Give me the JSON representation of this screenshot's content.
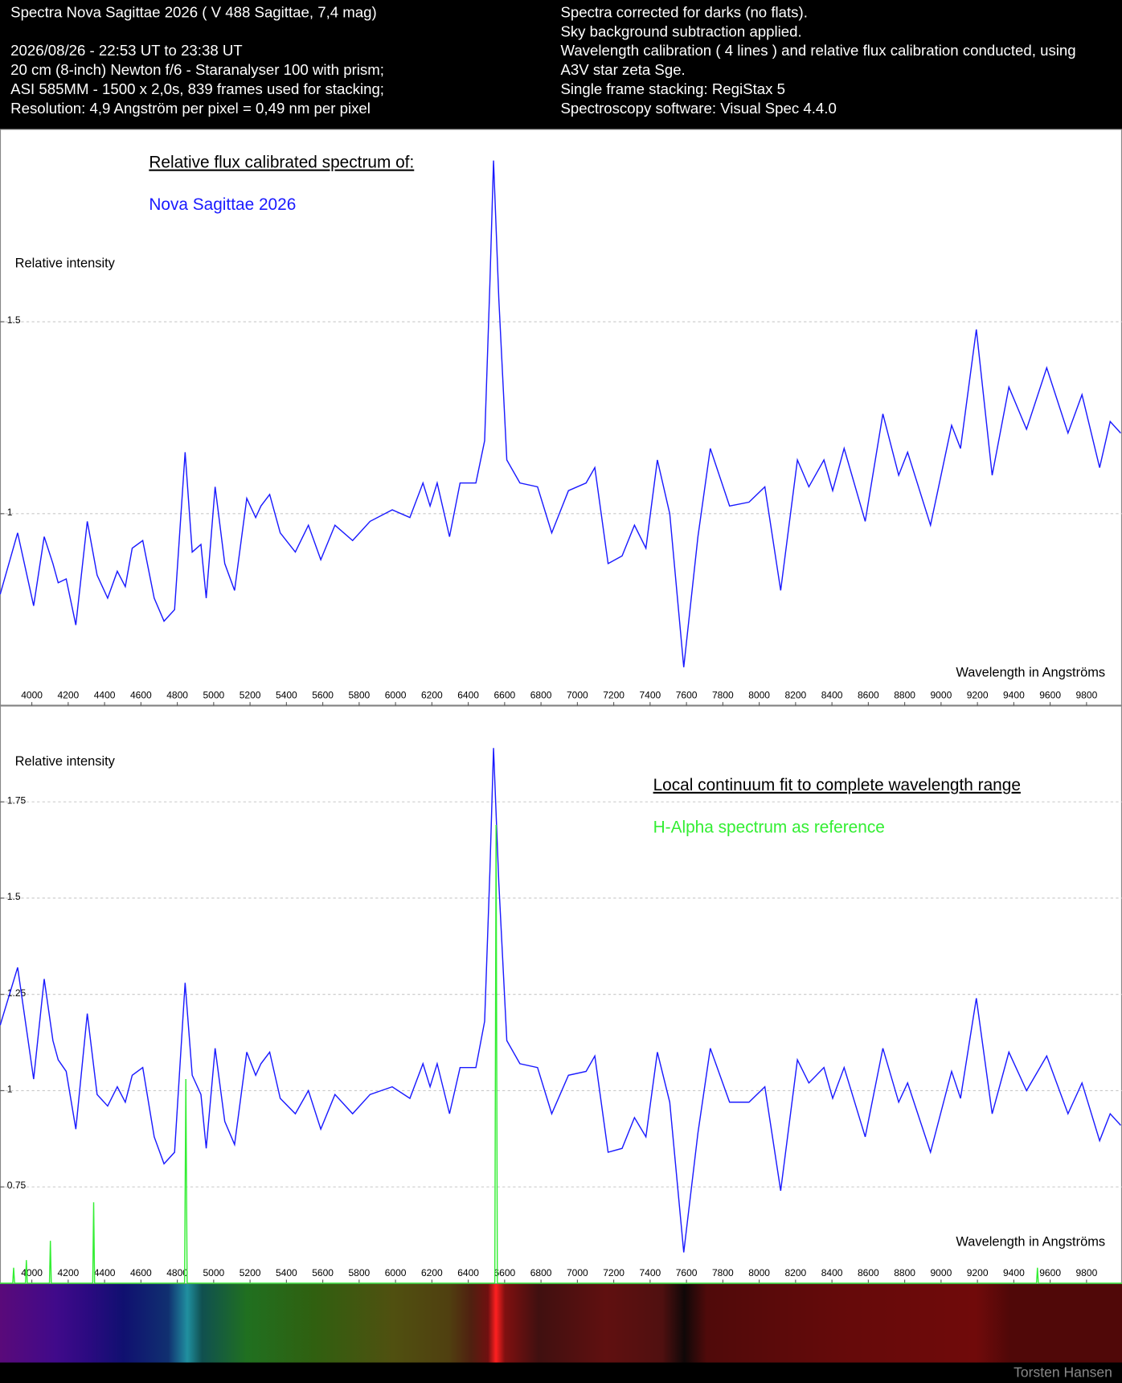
{
  "header": {
    "left": [
      "Spectra Nova Sagittae 2026 ( V 488 Sagittae, 7,4 mag)",
      "2026/08/26 - 22:53 UT to 23:38 UT",
      "20 cm (8-inch) Newton f/6 - Staranalyser 100 with prism;",
      "ASI 585MM - 1500 x 2,0s, 839 frames used for stacking;",
      "Resolution: 4,9 Angström per pixel = 0,49 nm per pixel"
    ],
    "right": [
      "Spectra corrected for darks (no flats).",
      "Sky background subtraction applied.",
      "Wavelength calibration ( 4 lines ) and relative flux calibration conducted, using",
      "A3V star zeta Sge.",
      "Single frame stacking: RegiStax 5",
      "Spectroscopy software: Visual Spec 4.4.0"
    ]
  },
  "footer": "Torsten Hansen",
  "chart_data": [
    {
      "type": "line",
      "title": "Relative flux calibrated spectrum of:",
      "ylabel": "Relative intensity",
      "xlabel": "Wavelength in Angströms",
      "xlim": [
        3825,
        9995
      ],
      "ylim": [
        0.5,
        2.0
      ],
      "xticks": [
        4000,
        4200,
        4400,
        4600,
        4800,
        5000,
        5200,
        5400,
        5600,
        5800,
        6000,
        6200,
        6400,
        6600,
        6800,
        7000,
        7200,
        7400,
        7600,
        7800,
        8000,
        8200,
        8400,
        8600,
        8800,
        9000,
        9200,
        9400,
        9600,
        9800
      ],
      "yticks": [
        1,
        1.5
      ],
      "grid": true,
      "series": [
        {
          "name": "Nova Sagittae 2026",
          "color": "#1a1aff",
          "x": [
            3826,
            3922,
            4010,
            4068,
            4116,
            4145,
            4189,
            4242,
            4305,
            4359,
            4417,
            4470,
            4514,
            4552,
            4610,
            4673,
            4727,
            4785,
            4843,
            4882,
            4930,
            4959,
            5008,
            5061,
            5115,
            5182,
            5231,
            5260,
            5308,
            5366,
            5449,
            5521,
            5589,
            5667,
            5764,
            5860,
            5982,
            6079,
            6151,
            6190,
            6229,
            6297,
            6355,
            6442,
            6490,
            6519,
            6539,
            6568,
            6612,
            6684,
            6781,
            6859,
            6951,
            7048,
            7096,
            7169,
            7246,
            7314,
            7377,
            7440,
            7508,
            7585,
            7663,
            7731,
            7837,
            7944,
            8031,
            8118,
            8210,
            8273,
            8356,
            8404,
            8467,
            8583,
            8680,
            8767,
            8816,
            8942,
            9058,
            9107,
            9194,
            9281,
            9373,
            9470,
            9581,
            9698,
            9775,
            9872,
            9930,
            9988
          ],
          "values": [
            0.79,
            0.95,
            0.76,
            0.94,
            0.87,
            0.82,
            0.83,
            0.71,
            0.98,
            0.84,
            0.78,
            0.85,
            0.81,
            0.91,
            0.93,
            0.78,
            0.72,
            0.75,
            1.16,
            0.9,
            0.92,
            0.78,
            1.07,
            0.87,
            0.8,
            1.04,
            0.99,
            1.02,
            1.05,
            0.95,
            0.9,
            0.97,
            0.88,
            0.97,
            0.93,
            0.98,
            1.01,
            0.99,
            1.08,
            1.02,
            1.08,
            0.94,
            1.08,
            1.08,
            1.19,
            1.6,
            1.92,
            1.56,
            1.14,
            1.08,
            1.07,
            0.95,
            1.06,
            1.08,
            1.12,
            0.87,
            0.89,
            0.97,
            0.91,
            1.14,
            1.0,
            0.6,
            0.94,
            1.17,
            1.02,
            1.03,
            1.07,
            0.8,
            1.14,
            1.07,
            1.14,
            1.06,
            1.17,
            0.98,
            1.26,
            1.1,
            1.16,
            0.97,
            1.23,
            1.17,
            1.48,
            1.1,
            1.33,
            1.22,
            1.38,
            1.21,
            1.31,
            1.12,
            1.24,
            1.21
          ]
        }
      ]
    },
    {
      "type": "line",
      "title": "Local continuum fit to complete wavelength range",
      "ylabel": "Relative intensity",
      "xlabel": "Wavelength in Angströms",
      "xlim": [
        3825,
        9995
      ],
      "ylim": [
        0.5,
        2.0
      ],
      "xticks": [
        4000,
        4200,
        4400,
        4600,
        4800,
        5000,
        5200,
        5400,
        5600,
        5800,
        6000,
        6200,
        6400,
        6600,
        6800,
        7000,
        7200,
        7400,
        7600,
        7800,
        8000,
        8200,
        8400,
        8600,
        8800,
        9000,
        9200,
        9400,
        9600,
        9800
      ],
      "yticks": [
        0.75,
        1,
        1.25,
        1.5,
        1.75
      ],
      "grid": true,
      "series": [
        {
          "color": "#1a1aff",
          "x": [
            3826,
            3922,
            4010,
            4068,
            4116,
            4145,
            4189,
            4242,
            4305,
            4359,
            4417,
            4470,
            4514,
            4552,
            4610,
            4673,
            4727,
            4785,
            4843,
            4882,
            4930,
            4959,
            5008,
            5061,
            5115,
            5182,
            5231,
            5260,
            5308,
            5366,
            5449,
            5521,
            5589,
            5667,
            5764,
            5860,
            5982,
            6079,
            6151,
            6190,
            6229,
            6297,
            6355,
            6442,
            6490,
            6519,
            6539,
            6568,
            6612,
            6684,
            6781,
            6859,
            6951,
            7048,
            7096,
            7169,
            7246,
            7314,
            7377,
            7440,
            7508,
            7585,
            7663,
            7731,
            7837,
            7944,
            8031,
            8118,
            8210,
            8273,
            8356,
            8404,
            8467,
            8583,
            8680,
            8767,
            8816,
            8942,
            9058,
            9107,
            9194,
            9281,
            9373,
            9470,
            9581,
            9698,
            9775,
            9872,
            9930,
            9988
          ],
          "values": [
            1.17,
            1.32,
            1.03,
            1.29,
            1.13,
            1.08,
            1.05,
            0.9,
            1.2,
            0.99,
            0.96,
            1.01,
            0.97,
            1.04,
            1.06,
            0.88,
            0.81,
            0.84,
            1.28,
            1.04,
            0.99,
            0.85,
            1.11,
            0.92,
            0.86,
            1.1,
            1.04,
            1.07,
            1.1,
            0.98,
            0.94,
            1.0,
            0.9,
            0.99,
            0.94,
            0.99,
            1.01,
            0.98,
            1.07,
            1.01,
            1.07,
            0.94,
            1.06,
            1.06,
            1.18,
            1.57,
            1.89,
            1.54,
            1.13,
            1.07,
            1.06,
            0.94,
            1.04,
            1.05,
            1.09,
            0.84,
            0.85,
            0.93,
            0.88,
            1.1,
            0.97,
            0.58,
            0.89,
            1.11,
            0.97,
            0.97,
            1.01,
            0.74,
            1.08,
            1.02,
            1.06,
            0.98,
            1.06,
            0.88,
            1.11,
            0.97,
            1.02,
            0.84,
            1.05,
            0.98,
            1.24,
            0.94,
            1.1,
            1.0,
            1.09,
            0.94,
            1.02,
            0.87,
            0.94,
            0.91
          ]
        },
        {
          "name": "H-Alpha spectrum as reference",
          "color": "#33ee33",
          "x": [
            3825,
            3895,
            3900,
            3905,
            3965,
            3970,
            3975,
            4097,
            4102,
            4107,
            4335,
            4340,
            4345,
            4840,
            4847,
            4854,
            6546,
            6553,
            6560,
            9525,
            9530,
            9535,
            9995
          ],
          "values": [
            0.5,
            0.5,
            0.54,
            0.5,
            0.5,
            0.56,
            0.5,
            0.5,
            0.61,
            0.5,
            0.5,
            0.71,
            0.5,
            0.5,
            1.03,
            0.5,
            0.5,
            1.69,
            0.5,
            0.5,
            0.54,
            0.5,
            0.5
          ]
        }
      ]
    }
  ]
}
